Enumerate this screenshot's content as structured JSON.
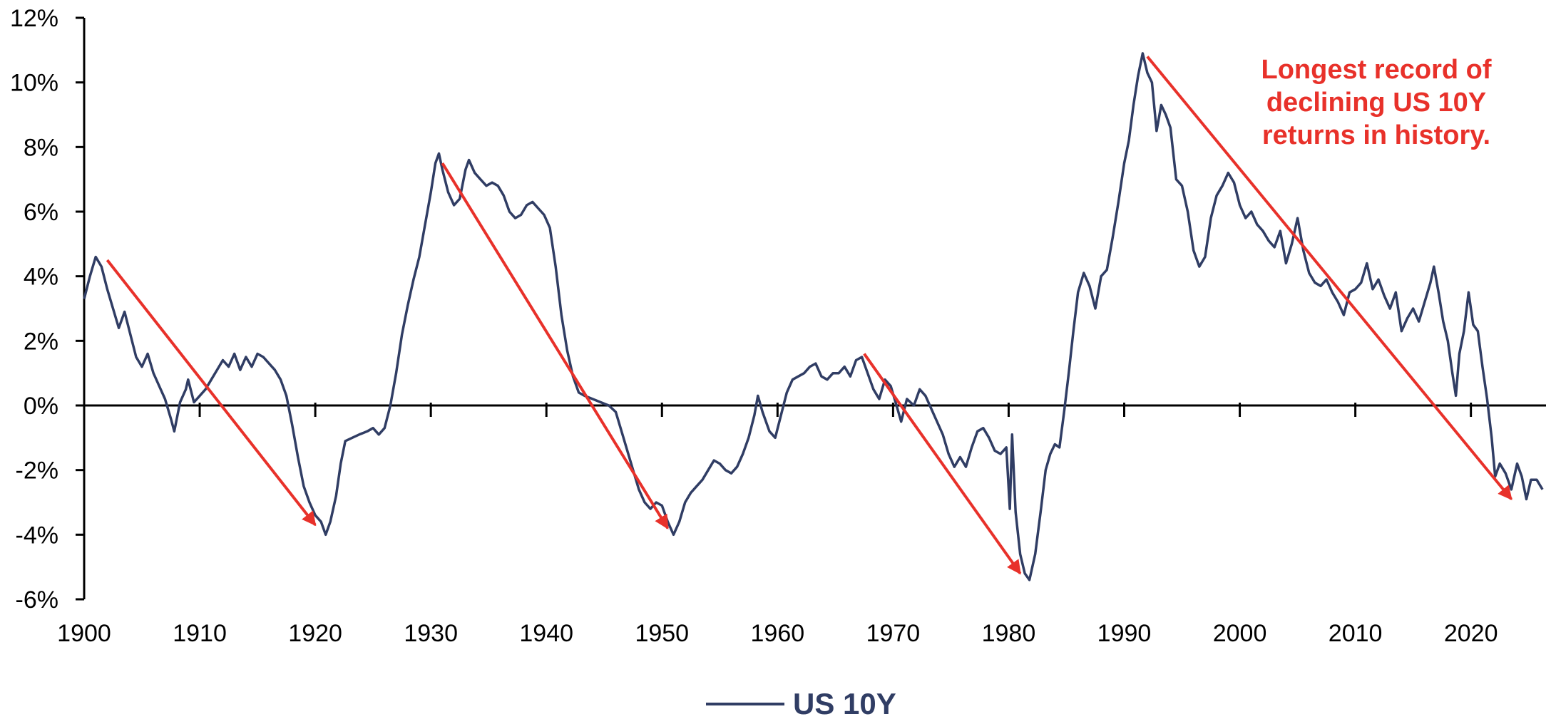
{
  "chart_data": {
    "type": "line",
    "title": "",
    "xlabel": "",
    "ylabel": "",
    "xlim": [
      1900,
      2026.5
    ],
    "ylim": [
      -6,
      12
    ],
    "x_ticks": [
      {
        "value": 1900,
        "label": "1900"
      },
      {
        "value": 1910,
        "label": "1910"
      },
      {
        "value": 1920,
        "label": "1920"
      },
      {
        "value": 1930,
        "label": "1930"
      },
      {
        "value": 1940,
        "label": "1940"
      },
      {
        "value": 1950,
        "label": "1950"
      },
      {
        "value": 1960,
        "label": "1960"
      },
      {
        "value": 1970,
        "label": "1970"
      },
      {
        "value": 1980,
        "label": "1980"
      },
      {
        "value": 1990,
        "label": "1990"
      },
      {
        "value": 2000,
        "label": "2000"
      },
      {
        "value": 2010,
        "label": "2010"
      },
      {
        "value": 2020,
        "label": "2020"
      }
    ],
    "y_ticks": [
      {
        "value": 12,
        "label": "12%"
      },
      {
        "value": 10,
        "label": "10%"
      },
      {
        "value": 8,
        "label": "8%"
      },
      {
        "value": 6,
        "label": "6%"
      },
      {
        "value": 4,
        "label": "4%"
      },
      {
        "value": 2,
        "label": "2%"
      },
      {
        "value": 0,
        "label": "0%"
      },
      {
        "value": -2,
        "label": "-2%"
      },
      {
        "value": -4,
        "label": "-4%"
      },
      {
        "value": -6,
        "label": "-6%"
      }
    ],
    "grid": false,
    "legend": {
      "position": "bottom-center"
    },
    "series": [
      {
        "name": "US 10Y",
        "color": "#303d64",
        "points": [
          [
            1900.0,
            3.3
          ],
          [
            1900.5,
            4.0
          ],
          [
            1901.0,
            4.6
          ],
          [
            1901.5,
            4.3
          ],
          [
            1902.0,
            3.6
          ],
          [
            1902.5,
            3.0
          ],
          [
            1903.0,
            2.4
          ],
          [
            1903.5,
            2.9
          ],
          [
            1904.0,
            2.2
          ],
          [
            1904.5,
            1.5
          ],
          [
            1905.0,
            1.2
          ],
          [
            1905.5,
            1.6
          ],
          [
            1906.0,
            1.0
          ],
          [
            1906.5,
            0.6
          ],
          [
            1907.0,
            0.2
          ],
          [
            1907.5,
            -0.4
          ],
          [
            1907.8,
            -0.8
          ],
          [
            1908.3,
            0.1
          ],
          [
            1908.8,
            0.5
          ],
          [
            1909.0,
            0.8
          ],
          [
            1909.5,
            0.1
          ],
          [
            1910.0,
            0.3
          ],
          [
            1910.5,
            0.5
          ],
          [
            1911.0,
            0.8
          ],
          [
            1911.5,
            1.1
          ],
          [
            1912.0,
            1.4
          ],
          [
            1912.5,
            1.2
          ],
          [
            1913.0,
            1.6
          ],
          [
            1913.5,
            1.1
          ],
          [
            1914.0,
            1.5
          ],
          [
            1914.5,
            1.2
          ],
          [
            1915.0,
            1.6
          ],
          [
            1915.5,
            1.5
          ],
          [
            1916.0,
            1.3
          ],
          [
            1916.5,
            1.1
          ],
          [
            1917.0,
            0.8
          ],
          [
            1917.5,
            0.3
          ],
          [
            1918.0,
            -0.6
          ],
          [
            1918.5,
            -1.6
          ],
          [
            1919.0,
            -2.5
          ],
          [
            1919.5,
            -3.0
          ],
          [
            1920.0,
            -3.4
          ],
          [
            1920.5,
            -3.6
          ],
          [
            1920.9,
            -4.0
          ],
          [
            1921.3,
            -3.6
          ],
          [
            1921.8,
            -2.8
          ],
          [
            1922.2,
            -1.8
          ],
          [
            1922.6,
            -1.1
          ],
          [
            1923.2,
            -1.0
          ],
          [
            1923.8,
            -0.9
          ],
          [
            1924.5,
            -0.8
          ],
          [
            1925.0,
            -0.7
          ],
          [
            1925.5,
            -0.9
          ],
          [
            1926.0,
            -0.7
          ],
          [
            1926.5,
            0.0
          ],
          [
            1927.0,
            1.0
          ],
          [
            1927.5,
            2.2
          ],
          [
            1928.0,
            3.1
          ],
          [
            1928.5,
            3.9
          ],
          [
            1929.0,
            4.6
          ],
          [
            1929.5,
            5.6
          ],
          [
            1930.0,
            6.6
          ],
          [
            1930.4,
            7.5
          ],
          [
            1930.7,
            7.8
          ],
          [
            1931.0,
            7.3
          ],
          [
            1931.5,
            6.6
          ],
          [
            1932.0,
            6.2
          ],
          [
            1932.5,
            6.4
          ],
          [
            1933.0,
            7.3
          ],
          [
            1933.3,
            7.6
          ],
          [
            1933.8,
            7.2
          ],
          [
            1934.3,
            7.0
          ],
          [
            1934.8,
            6.8
          ],
          [
            1935.3,
            6.9
          ],
          [
            1935.8,
            6.8
          ],
          [
            1936.3,
            6.5
          ],
          [
            1936.8,
            6.0
          ],
          [
            1937.3,
            5.8
          ],
          [
            1937.8,
            5.9
          ],
          [
            1938.3,
            6.2
          ],
          [
            1938.8,
            6.3
          ],
          [
            1939.3,
            6.1
          ],
          [
            1939.8,
            5.9
          ],
          [
            1940.3,
            5.5
          ],
          [
            1940.8,
            4.3
          ],
          [
            1941.3,
            2.8
          ],
          [
            1941.8,
            1.7
          ],
          [
            1942.3,
            0.9
          ],
          [
            1942.8,
            0.4
          ],
          [
            1943.3,
            0.3
          ],
          [
            1944.0,
            0.2
          ],
          [
            1944.7,
            0.1
          ],
          [
            1945.4,
            0.0
          ],
          [
            1946.0,
            -0.2
          ],
          [
            1946.5,
            -0.8
          ],
          [
            1947.0,
            -1.4
          ],
          [
            1947.5,
            -2.0
          ],
          [
            1948.0,
            -2.6
          ],
          [
            1948.5,
            -3.0
          ],
          [
            1949.0,
            -3.2
          ],
          [
            1949.5,
            -3.0
          ],
          [
            1950.0,
            -3.1
          ],
          [
            1950.5,
            -3.6
          ],
          [
            1951.0,
            -4.0
          ],
          [
            1951.5,
            -3.6
          ],
          [
            1952.0,
            -3.0
          ],
          [
            1952.5,
            -2.7
          ],
          [
            1953.0,
            -2.5
          ],
          [
            1953.5,
            -2.3
          ],
          [
            1954.0,
            -2.0
          ],
          [
            1954.5,
            -1.7
          ],
          [
            1955.0,
            -1.8
          ],
          [
            1955.5,
            -2.0
          ],
          [
            1956.0,
            -2.1
          ],
          [
            1956.5,
            -1.9
          ],
          [
            1957.0,
            -1.5
          ],
          [
            1957.5,
            -1.0
          ],
          [
            1958.0,
            -0.3
          ],
          [
            1958.3,
            0.3
          ],
          [
            1958.7,
            -0.2
          ],
          [
            1959.3,
            -0.8
          ],
          [
            1959.8,
            -1.0
          ],
          [
            1960.3,
            -0.3
          ],
          [
            1960.8,
            0.4
          ],
          [
            1961.3,
            0.8
          ],
          [
            1961.8,
            0.9
          ],
          [
            1962.3,
            1.0
          ],
          [
            1962.8,
            1.2
          ],
          [
            1963.3,
            1.3
          ],
          [
            1963.8,
            0.9
          ],
          [
            1964.3,
            0.8
          ],
          [
            1964.8,
            1.0
          ],
          [
            1965.3,
            1.0
          ],
          [
            1965.8,
            1.2
          ],
          [
            1966.3,
            0.9
          ],
          [
            1966.8,
            1.4
          ],
          [
            1967.3,
            1.5
          ],
          [
            1967.8,
            1.0
          ],
          [
            1968.3,
            0.5
          ],
          [
            1968.8,
            0.2
          ],
          [
            1969.3,
            0.8
          ],
          [
            1969.8,
            0.6
          ],
          [
            1970.3,
            0.0
          ],
          [
            1970.7,
            -0.5
          ],
          [
            1971.2,
            0.2
          ],
          [
            1971.8,
            0.0
          ],
          [
            1972.3,
            0.5
          ],
          [
            1972.8,
            0.3
          ],
          [
            1973.3,
            -0.1
          ],
          [
            1973.8,
            -0.5
          ],
          [
            1974.3,
            -0.9
          ],
          [
            1974.8,
            -1.5
          ],
          [
            1975.3,
            -1.9
          ],
          [
            1975.8,
            -1.6
          ],
          [
            1976.3,
            -1.9
          ],
          [
            1976.8,
            -1.3
          ],
          [
            1977.3,
            -0.8
          ],
          [
            1977.8,
            -0.7
          ],
          [
            1978.3,
            -1.0
          ],
          [
            1978.8,
            -1.4
          ],
          [
            1979.3,
            -1.5
          ],
          [
            1979.8,
            -1.3
          ],
          [
            1980.1,
            -3.2
          ],
          [
            1980.3,
            -0.9
          ],
          [
            1980.6,
            -3.3
          ],
          [
            1981.0,
            -4.6
          ],
          [
            1981.4,
            -5.2
          ],
          [
            1981.8,
            -5.4
          ],
          [
            1982.3,
            -4.6
          ],
          [
            1982.8,
            -3.2
          ],
          [
            1983.2,
            -2.0
          ],
          [
            1983.6,
            -1.5
          ],
          [
            1984.0,
            -1.2
          ],
          [
            1984.4,
            -1.3
          ],
          [
            1984.8,
            -0.2
          ],
          [
            1985.2,
            1.0
          ],
          [
            1985.6,
            2.3
          ],
          [
            1986.0,
            3.5
          ],
          [
            1986.5,
            4.1
          ],
          [
            1987.0,
            3.7
          ],
          [
            1987.5,
            3.0
          ],
          [
            1988.0,
            4.0
          ],
          [
            1988.5,
            4.2
          ],
          [
            1989.0,
            5.2
          ],
          [
            1989.5,
            6.3
          ],
          [
            1990.0,
            7.5
          ],
          [
            1990.4,
            8.2
          ],
          [
            1990.8,
            9.3
          ],
          [
            1991.2,
            10.2
          ],
          [
            1991.6,
            10.9
          ],
          [
            1992.0,
            10.3
          ],
          [
            1992.4,
            10.0
          ],
          [
            1992.8,
            8.5
          ],
          [
            1993.2,
            9.3
          ],
          [
            1993.6,
            9.0
          ],
          [
            1994.0,
            8.6
          ],
          [
            1994.5,
            7.0
          ],
          [
            1995.0,
            6.8
          ],
          [
            1995.5,
            6.0
          ],
          [
            1996.0,
            4.8
          ],
          [
            1996.5,
            4.3
          ],
          [
            1997.0,
            4.6
          ],
          [
            1997.5,
            5.8
          ],
          [
            1998.0,
            6.5
          ],
          [
            1998.5,
            6.8
          ],
          [
            1999.0,
            7.2
          ],
          [
            1999.5,
            6.9
          ],
          [
            2000.0,
            6.2
          ],
          [
            2000.5,
            5.8
          ],
          [
            2001.0,
            6.0
          ],
          [
            2001.5,
            5.6
          ],
          [
            2002.0,
            5.4
          ],
          [
            2002.5,
            5.1
          ],
          [
            2003.0,
            4.9
          ],
          [
            2003.5,
            5.4
          ],
          [
            2004.0,
            4.4
          ],
          [
            2004.5,
            5.0
          ],
          [
            2005.0,
            5.8
          ],
          [
            2005.5,
            4.8
          ],
          [
            2006.0,
            4.1
          ],
          [
            2006.5,
            3.8
          ],
          [
            2007.0,
            3.7
          ],
          [
            2007.5,
            3.9
          ],
          [
            2008.0,
            3.5
          ],
          [
            2008.5,
            3.2
          ],
          [
            2009.0,
            2.8
          ],
          [
            2009.5,
            3.5
          ],
          [
            2010.0,
            3.6
          ],
          [
            2010.5,
            3.8
          ],
          [
            2011.0,
            4.4
          ],
          [
            2011.5,
            3.6
          ],
          [
            2012.0,
            3.9
          ],
          [
            2012.5,
            3.4
          ],
          [
            2013.0,
            3.0
          ],
          [
            2013.5,
            3.5
          ],
          [
            2014.0,
            2.3
          ],
          [
            2014.5,
            2.7
          ],
          [
            2015.0,
            3.0
          ],
          [
            2015.5,
            2.6
          ],
          [
            2016.0,
            3.2
          ],
          [
            2016.5,
            3.8
          ],
          [
            2016.8,
            4.3
          ],
          [
            2017.2,
            3.5
          ],
          [
            2017.6,
            2.6
          ],
          [
            2018.0,
            2.0
          ],
          [
            2018.4,
            1.0
          ],
          [
            2018.7,
            0.3
          ],
          [
            2019.0,
            1.6
          ],
          [
            2019.4,
            2.3
          ],
          [
            2019.8,
            3.5
          ],
          [
            2020.2,
            2.5
          ],
          [
            2020.6,
            2.3
          ],
          [
            2021.0,
            1.2
          ],
          [
            2021.4,
            0.2
          ],
          [
            2021.8,
            -1.0
          ],
          [
            2022.1,
            -2.2
          ],
          [
            2022.5,
            -1.8
          ],
          [
            2023.0,
            -2.1
          ],
          [
            2023.5,
            -2.6
          ],
          [
            2024.0,
            -1.8
          ],
          [
            2024.4,
            -2.2
          ],
          [
            2024.8,
            -2.9
          ],
          [
            2025.2,
            -2.3
          ],
          [
            2025.7,
            -2.3
          ],
          [
            2026.2,
            -2.6
          ]
        ]
      }
    ],
    "arrows": [
      {
        "from": [
          1902,
          4.5
        ],
        "to": [
          1920,
          -3.7
        ],
        "color": "#e8312a"
      },
      {
        "from": [
          1931,
          7.5
        ],
        "to": [
          1950.5,
          -3.8
        ],
        "color": "#e8312a"
      },
      {
        "from": [
          1967.5,
          1.6
        ],
        "to": [
          1981,
          -5.2
        ],
        "color": "#e8312a"
      },
      {
        "from": [
          1992,
          10.8
        ],
        "to": [
          2023.5,
          -2.9
        ],
        "color": "#e8312a"
      }
    ],
    "annotation": {
      "lines": [
        "Longest record of",
        "declining US 10Y",
        "returns in history."
      ],
      "color": "#e8312a"
    },
    "zero_line": true
  }
}
